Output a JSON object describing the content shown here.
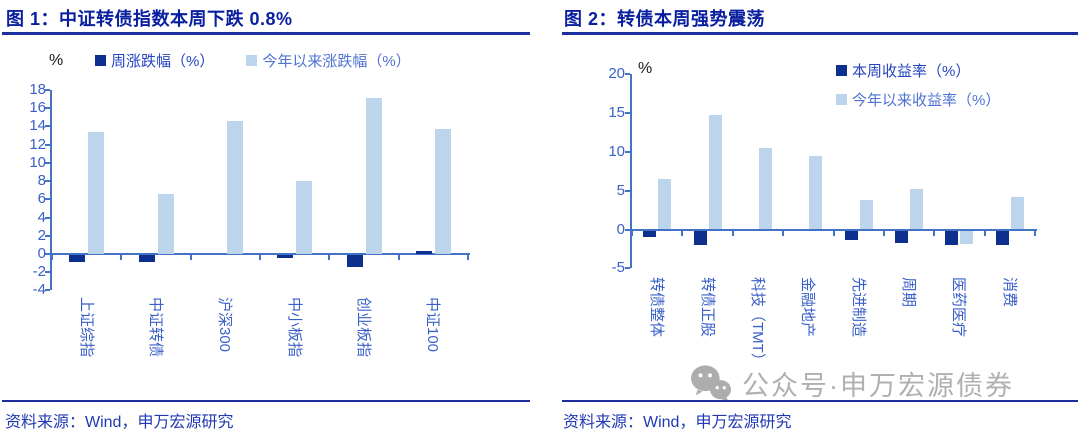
{
  "colors": {
    "title_navy": "#0a1fa0",
    "rule_navy": "#1d2f9e",
    "source_blue": "#2039b2",
    "watermark_grey": "#b0b0b0"
  },
  "watermark": {
    "icon": "wechat-logo-icon",
    "text": "公众号·申万宏源债券"
  },
  "chart_data": [
    {
      "id": "figure1",
      "type": "bar",
      "title": "图 1：中证转债指数本周下跌 0.8%",
      "source": "资料来源：Wind，申万宏源研究",
      "ylabel": "%",
      "ylim": [
        -4,
        18
      ],
      "ytick_step": 2,
      "grid": false,
      "legend_position": "top",
      "axis_color": "#4472c4",
      "tick_label_color": "#3a5fc8",
      "categories": [
        "上证综指",
        "中证转债",
        "沪深300",
        "中小板指",
        "创业板指",
        "中证100"
      ],
      "series": [
        {
          "name": "周涨跌幅（%）",
          "color": "#0d2f8e",
          "label_color": "#2444c0",
          "values": [
            -0.8,
            -0.8,
            0.0,
            -0.3,
            -1.3,
            0.3
          ]
        },
        {
          "name": "今年以来涨跌幅（%）",
          "color": "#bdd5ec",
          "label_color": "#4e73d0",
          "values": [
            13.4,
            6.6,
            14.6,
            8.0,
            17.1,
            13.7
          ]
        }
      ]
    },
    {
      "id": "figure2",
      "type": "bar",
      "title": "图 2：转债本周强势震荡",
      "source": "资料来源：Wind，申万宏源研究",
      "ylabel": "%",
      "ylim": [
        -5,
        20
      ],
      "ytick_step": 5,
      "grid": false,
      "legend_position": "top-right",
      "axis_color": "#4472c4",
      "tick_label_color": "#3a5fc8",
      "categories": [
        "转债整体",
        "转债正股",
        "科技（TMT）",
        "金融地产",
        "先进制造",
        "周期",
        "医药医疗",
        "消费"
      ],
      "series": [
        {
          "name": "本周收益率（%）",
          "color": "#0d2f8e",
          "label_color": "#2444c0",
          "values": [
            -0.9,
            -1.9,
            0.0,
            0.0,
            -1.2,
            -1.6,
            -1.9,
            -1.9
          ]
        },
        {
          "name": "今年以来收益率（%）",
          "color": "#bdd5ec",
          "label_color": "#4e73d0",
          "values": [
            6.5,
            14.8,
            10.5,
            9.5,
            3.8,
            5.2,
            -1.7,
            4.2
          ]
        }
      ]
    }
  ]
}
